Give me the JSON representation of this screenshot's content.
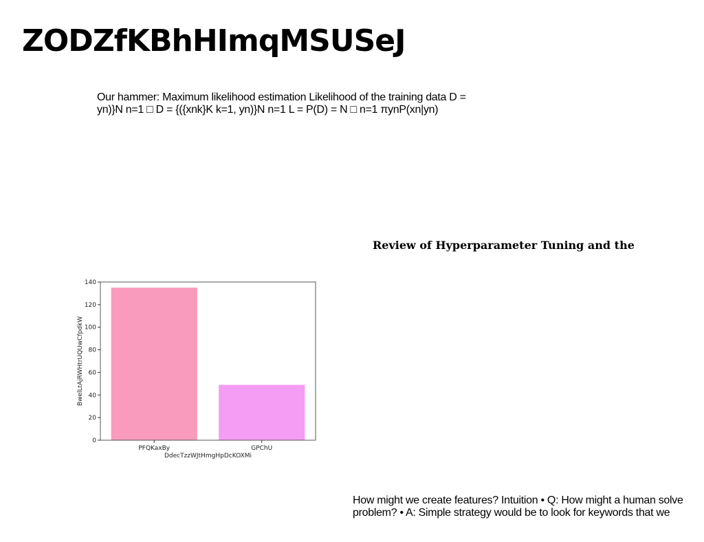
{
  "page": {
    "title": "ZODZfKBhHImqMSUSeJ",
    "text_block_1": {
      "line1": "Our hammer: Maximum likelihood estimation Likelihood of the training data D =",
      "line2": "yn)}N n=1 □ D = {({xnk}K k=1, yn)}N n=1 L = P(D) = N □ n=1 πynP(xn|yn)"
    },
    "section_heading": "Review of Hyperparameter Tuning and the",
    "text_block_2": {
      "line1": "How might we create features? Intuition • Q: How might a human solve",
      "line2": "problem? • A: Simple strategy would be to look for keywords that we"
    }
  },
  "chart_data": {
    "type": "bar",
    "categories": [
      "PFQKaxBy",
      "GPChU"
    ],
    "values": [
      135,
      49
    ],
    "colors": [
      "#f99bbd",
      "#f59cf5"
    ],
    "xlabel": "DdecTzzWJtHmgHpDcKOXMi",
    "ylabel": "BwelLtAjRWHtrUQUwCfpdkW",
    "ylim": [
      0,
      140
    ],
    "yticks": [
      0,
      20,
      40,
      60,
      80,
      100,
      120,
      140
    ],
    "grid": false
  }
}
